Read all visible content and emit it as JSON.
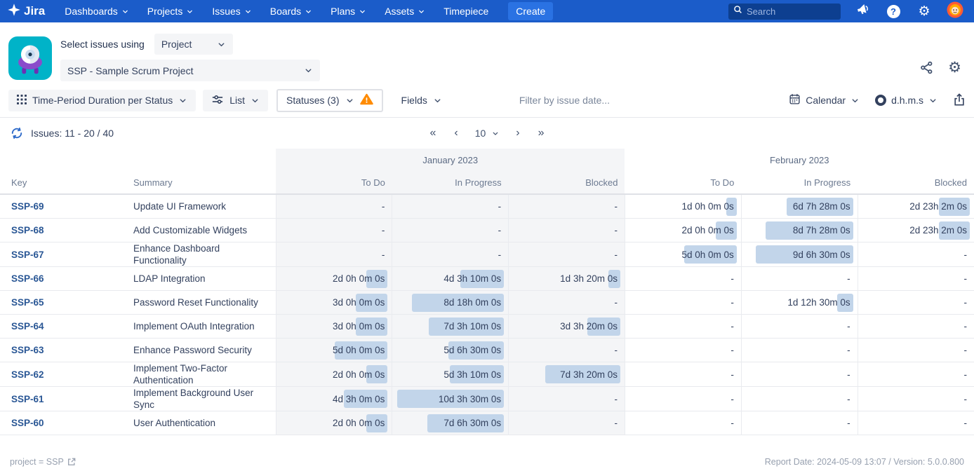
{
  "navbar": {
    "brand": "Jira",
    "items": [
      {
        "label": "Dashboards",
        "chevron": true
      },
      {
        "label": "Projects",
        "chevron": true
      },
      {
        "label": "Issues",
        "chevron": true
      },
      {
        "label": "Boards",
        "chevron": true
      },
      {
        "label": "Plans",
        "chevron": true
      },
      {
        "label": "Assets",
        "chevron": true
      },
      {
        "label": "Timepiece",
        "chevron": false
      }
    ],
    "create_label": "Create",
    "search_placeholder": "Search"
  },
  "header": {
    "select_label": "Select issues using",
    "mode_value": "Project",
    "project_value": "SSP - Sample Scrum Project"
  },
  "toolbar": {
    "report_type": "Time-Period Duration per Status",
    "view": "List",
    "statuses": "Statuses (3)",
    "fields": "Fields",
    "filter_placeholder": "Filter by issue date...",
    "calendar": "Calendar",
    "format": "d.h.m.s"
  },
  "results": {
    "issues_label": "Issues: 11 - 20 / 40",
    "pagination": {
      "first": "«",
      "prev": "‹",
      "next": "›",
      "last": "»"
    },
    "page_size": "10"
  },
  "table": {
    "key_header": "Key",
    "summary_header": "Summary",
    "groups": [
      {
        "label": "January 2023"
      },
      {
        "label": "February 2023"
      }
    ],
    "status_columns": [
      "To Do",
      "In Progress",
      "Blocked"
    ],
    "empty_value": "-",
    "rows": [
      {
        "key": "SSP-69",
        "summary": "Update UI Framework",
        "cells": [
          null,
          null,
          null,
          {
            "text": "1d 0h 0m 0s",
            "days": 1.0
          },
          {
            "text": "6d 7h 28m 0s",
            "days": 6.31
          },
          {
            "text": "2d 23h 2m 0s",
            "days": 2.96
          }
        ]
      },
      {
        "key": "SSP-68",
        "summary": "Add Customizable Widgets",
        "cells": [
          null,
          null,
          null,
          {
            "text": "2d 0h 0m 0s",
            "days": 2.0
          },
          {
            "text": "8d 7h 28m 0s",
            "days": 8.31
          },
          {
            "text": "2d 23h 2m 0s",
            "days": 2.96
          }
        ]
      },
      {
        "key": "SSP-67",
        "summary": "Enhance Dashboard Functionality",
        "cells": [
          null,
          null,
          null,
          {
            "text": "5d 0h 0m 0s",
            "days": 5.0
          },
          {
            "text": "9d 6h 30m 0s",
            "days": 9.27
          },
          null
        ]
      },
      {
        "key": "SSP-66",
        "summary": "LDAP Integration",
        "cells": [
          {
            "text": "2d 0h 0m 0s",
            "days": 2.0
          },
          {
            "text": "4d 3h 10m 0s",
            "days": 4.13
          },
          {
            "text": "1d 3h 20m 0s",
            "days": 1.14
          },
          null,
          null,
          null
        ]
      },
      {
        "key": "SSP-65",
        "summary": "Password Reset Functionality",
        "cells": [
          {
            "text": "3d 0h 0m 0s",
            "days": 3.0
          },
          {
            "text": "8d 18h 0m 0s",
            "days": 8.75
          },
          null,
          null,
          {
            "text": "1d 12h 30m 0s",
            "days": 1.52
          },
          null
        ]
      },
      {
        "key": "SSP-64",
        "summary": "Implement OAuth Integration",
        "cells": [
          {
            "text": "3d 0h 0m 0s",
            "days": 3.0
          },
          {
            "text": "7d 3h 10m 0s",
            "days": 7.13
          },
          {
            "text": "3d 3h 20m 0s",
            "days": 3.14
          },
          null,
          null,
          null
        ]
      },
      {
        "key": "SSP-63",
        "summary": "Enhance Password Security",
        "cells": [
          {
            "text": "5d 0h 0m 0s",
            "days": 5.0
          },
          {
            "text": "5d 6h 30m 0s",
            "days": 5.27
          },
          null,
          null,
          null,
          null
        ]
      },
      {
        "key": "SSP-62",
        "summary": "Implement Two-Factor Authentication",
        "cells": [
          {
            "text": "2d 0h 0m 0s",
            "days": 2.0
          },
          {
            "text": "5d 3h 10m 0s",
            "days": 5.13
          },
          {
            "text": "7d 3h 20m 0s",
            "days": 7.14
          },
          null,
          null,
          null
        ]
      },
      {
        "key": "SSP-61",
        "summary": "Implement Background User Sync",
        "cells": [
          {
            "text": "4d 3h 0m 0s",
            "days": 4.13
          },
          {
            "text": "10d 3h 30m 0s",
            "days": 10.15
          },
          null,
          null,
          null,
          null
        ]
      },
      {
        "key": "SSP-60",
        "summary": "User Authentication",
        "cells": [
          {
            "text": "2d 0h 0m 0s",
            "days": 2.0
          },
          {
            "text": "7d 6h 30m 0s",
            "days": 7.27
          },
          null,
          null,
          null,
          null
        ]
      }
    ]
  },
  "footer": {
    "left": "project = SSP",
    "right": "Report Date: 2024-05-09 13:07 / Version: 5.0.0.800"
  },
  "colors": {
    "navbar_blue": "#1b5cc9",
    "bar_fill": "#c2d5ea",
    "warning_orange": "#ff8b00",
    "key_link_blue": "#2a5795"
  }
}
